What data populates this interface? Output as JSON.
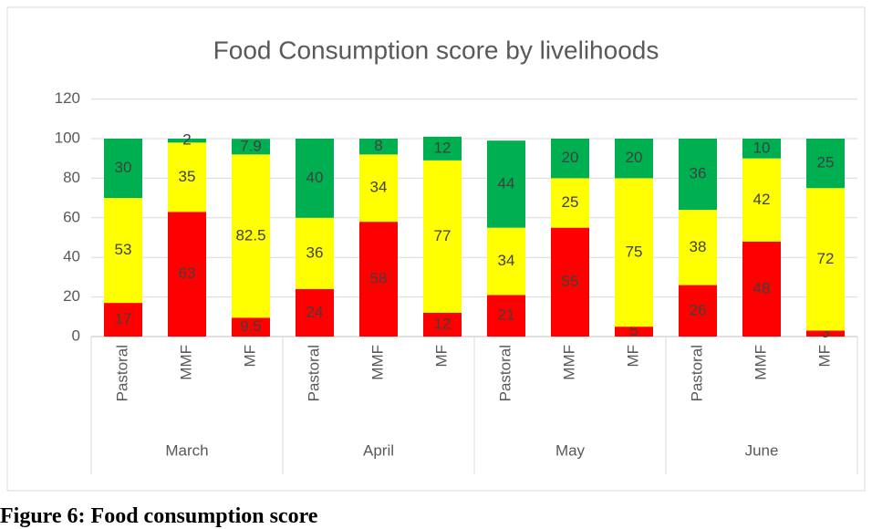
{
  "chart_data": {
    "type": "stacked_bar",
    "title": "Food Consumption score by livelihoods",
    "categories": [
      "Pastoral",
      "MMF",
      "MF",
      "Pastoral",
      "MMF",
      "MF",
      "Pastoral",
      "MMF",
      "MF",
      "Pastoral",
      "MMF",
      "MF"
    ],
    "groups": [
      "March",
      "April",
      "May",
      "June"
    ],
    "series": [
      {
        "color": "#ff0000",
        "values": [
          17,
          63,
          9.5,
          24,
          58,
          12,
          21,
          55,
          5,
          26,
          48,
          3
        ]
      },
      {
        "color": "#ffff00",
        "values": [
          53,
          35,
          82.5,
          36,
          34,
          77,
          34,
          25,
          75,
          38,
          42,
          72
        ]
      },
      {
        "color": "#00b050",
        "values": [
          30,
          2,
          7.9,
          40,
          8,
          12,
          44,
          20,
          20,
          36,
          10,
          25
        ]
      }
    ],
    "ylim": [
      0,
      120
    ],
    "yticks": [
      0,
      20,
      40,
      60,
      80,
      100,
      120
    ],
    "grid": true
  },
  "caption": "Figure 6: Food consumption score"
}
